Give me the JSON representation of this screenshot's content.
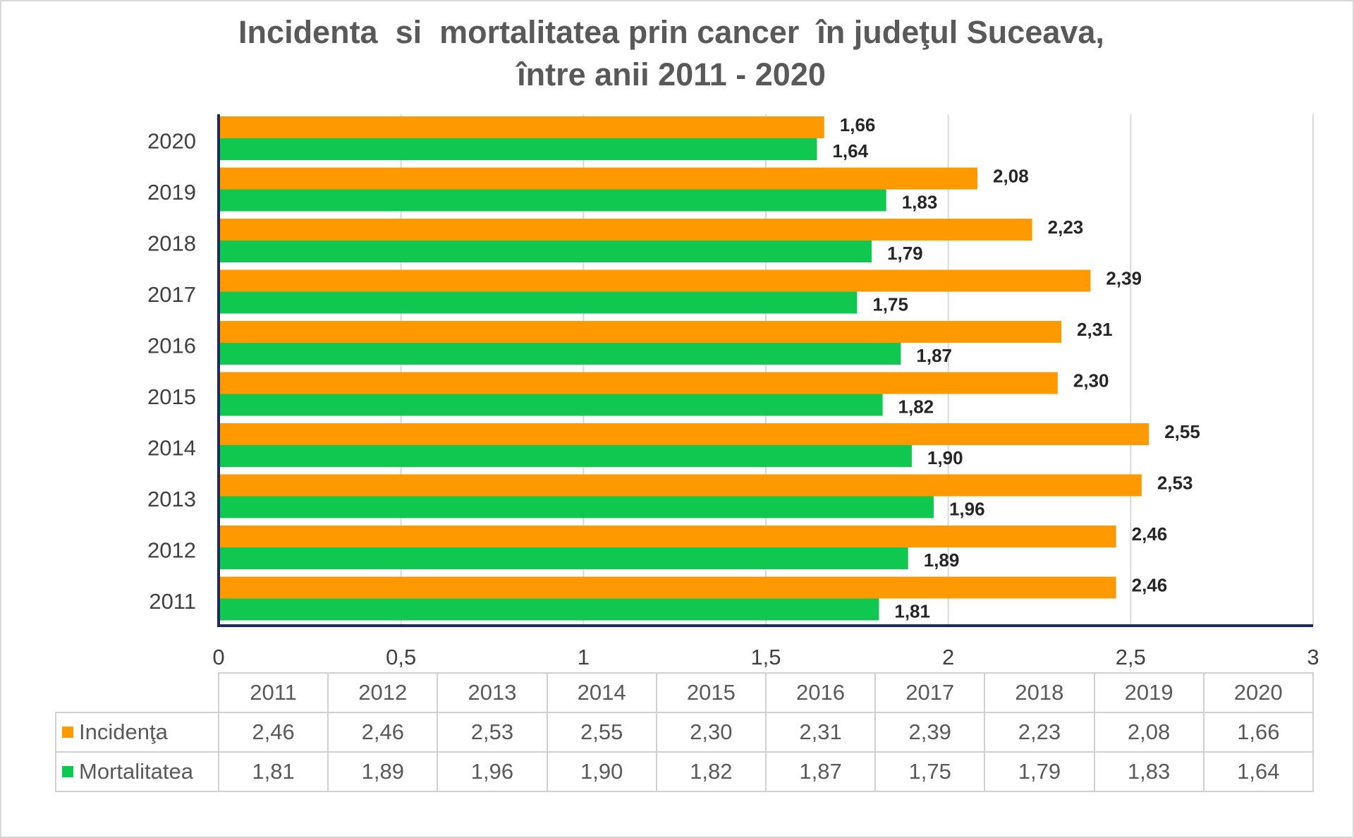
{
  "chart_data": {
    "type": "bar",
    "orientation": "horizontal",
    "title": "Incidenta  si  mortalitatea prin cancer  în judeţul Suceava,",
    "subtitle": "între anii 2011 - 2020",
    "categories": [
      "2011",
      "2012",
      "2013",
      "2014",
      "2015",
      "2016",
      "2017",
      "2018",
      "2019",
      "2020"
    ],
    "series": [
      {
        "name": "Incidenţa",
        "color": "#ff9900",
        "values": [
          2.46,
          2.46,
          2.53,
          2.55,
          2.3,
          2.31,
          2.39,
          2.23,
          2.08,
          1.66
        ],
        "labels": [
          "2,46",
          "2,46",
          "2,53",
          "2,55",
          "2,30",
          "2,31",
          "2,39",
          "2,23",
          "2,08",
          "1,66"
        ]
      },
      {
        "name": "Mortalitatea",
        "color": "#10c850",
        "values": [
          1.81,
          1.89,
          1.96,
          1.9,
          1.82,
          1.87,
          1.75,
          1.79,
          1.83,
          1.64
        ],
        "labels": [
          "1,81",
          "1,89",
          "1,96",
          "1,90",
          "1,82",
          "1,87",
          "1,75",
          "1,79",
          "1,83",
          "1,64"
        ]
      }
    ],
    "xlim": [
      0,
      3
    ],
    "x_ticks": [
      0,
      0.5,
      1,
      1.5,
      2,
      2.5,
      3
    ],
    "x_tick_labels": [
      "0",
      "0,5",
      "1",
      "1,5",
      "2",
      "2,5",
      "3"
    ],
    "grid": "vertical",
    "axis_color": "#1f2a5c",
    "legend": "data table below chart",
    "xlabel": "",
    "ylabel": ""
  }
}
